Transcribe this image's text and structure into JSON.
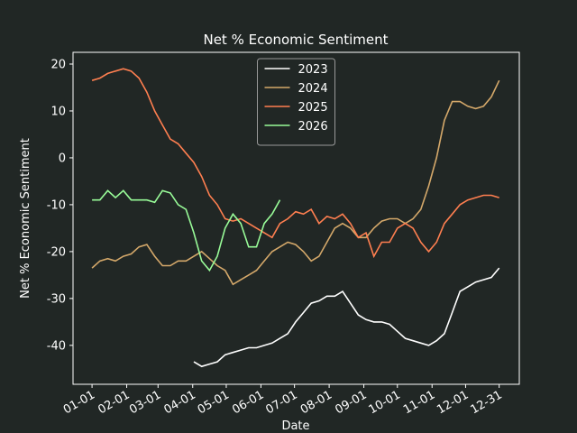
{
  "chart_data": {
    "type": "line",
    "title": "Net % Economic Sentiment",
    "xlabel": "Date",
    "ylabel": "Net % Economic Sentiment",
    "x": [
      1,
      8,
      15,
      22,
      29,
      36,
      43,
      50,
      57,
      64,
      71,
      78,
      85,
      92,
      99,
      106,
      113,
      120,
      127,
      134,
      141,
      148,
      155,
      162,
      169,
      176,
      183,
      190,
      197,
      204,
      211,
      218,
      225,
      232,
      239,
      246,
      253,
      260,
      267,
      274,
      281,
      288,
      295,
      302,
      309,
      316,
      323,
      330,
      337,
      344,
      351,
      358,
      365
    ],
    "xlim": [
      -16,
      383
    ],
    "xticks": [
      {
        "value": 1,
        "label": "01-01"
      },
      {
        "value": 32,
        "label": "02-01"
      },
      {
        "value": 60,
        "label": "03-01"
      },
      {
        "value": 91,
        "label": "04-01"
      },
      {
        "value": 121,
        "label": "05-01"
      },
      {
        "value": 152,
        "label": "06-01"
      },
      {
        "value": 182,
        "label": "07-01"
      },
      {
        "value": 213,
        "label": "08-01"
      },
      {
        "value": 244,
        "label": "09-01"
      },
      {
        "value": 274,
        "label": "10-01"
      },
      {
        "value": 305,
        "label": "11-01"
      },
      {
        "value": 335,
        "label": "12-01"
      },
      {
        "value": 365,
        "label": "12-31"
      }
    ],
    "ylim": [
      -48.3,
      22.5
    ],
    "yticks": [
      -40,
      -30,
      -20,
      -10,
      0,
      10,
      20
    ],
    "legend": "upper center",
    "series": [
      {
        "name": "2023",
        "color": "#ffffff",
        "values": [
          null,
          null,
          null,
          null,
          null,
          null,
          null,
          null,
          null,
          null,
          null,
          null,
          null,
          -43.5,
          -44.5,
          -44,
          -43.5,
          -42,
          -41.5,
          -41,
          -40.5,
          -40.5,
          -40,
          -39.5,
          -38.5,
          -37.5,
          -35,
          -33,
          -31,
          -30.5,
          -29.5,
          -29.5,
          -28.5,
          -31,
          -33.5,
          -34.5,
          -35,
          -35,
          -35.5,
          -37,
          -38.5,
          -39,
          -39.5,
          -40,
          -39,
          -37.5,
          -33,
          -28.5,
          -27.5,
          -26.5,
          -26,
          -25.5,
          -23.5
        ]
      },
      {
        "name": "2024",
        "color": "#d4a86a",
        "values": [
          -23.5,
          -22,
          -21.5,
          -22,
          -21,
          -20.5,
          -19,
          -18.5,
          -21,
          -23,
          -23,
          -22,
          -22,
          -21,
          -20,
          -21.5,
          -23,
          -24,
          -27,
          -26,
          -25,
          -24,
          -22,
          -20,
          -19,
          -18,
          -18.5,
          -20,
          -22,
          -21,
          -18,
          -15,
          -14,
          -15,
          -17,
          -17,
          -15,
          -13.5,
          -13,
          -13,
          -14,
          -13,
          -11,
          -6,
          0,
          8,
          12,
          12,
          11,
          10.5,
          11,
          13,
          16.5
        ]
      },
      {
        "name": "2025",
        "color": "#ff7f50",
        "values": [
          16.5,
          17,
          18,
          18.5,
          19,
          18.5,
          17,
          14,
          10,
          7,
          4,
          3,
          1,
          -1,
          -4,
          -8,
          -10,
          -13,
          -13.5,
          -13,
          -14,
          -15,
          -16,
          -17,
          -14,
          -13,
          -11.5,
          -12,
          -11,
          -14,
          -12.5,
          -13,
          -12,
          -14,
          -17,
          -16,
          -21,
          -18,
          -18,
          -15,
          -14,
          -15,
          -18,
          -20,
          -18,
          -14,
          -12,
          -10,
          -9,
          -8.5,
          -8,
          -8,
          -8.5
        ]
      },
      {
        "name": "2026",
        "color": "#98fb98",
        "values": [
          -9,
          -9,
          -7,
          -8.5,
          -7,
          -9,
          -9,
          -9,
          -9.5,
          -7,
          -7.5,
          -10,
          -11,
          -16,
          -22,
          -24,
          -21,
          -15,
          -12,
          -14,
          -19,
          -19,
          -14,
          -12,
          -9,
          null,
          null,
          null,
          null,
          null,
          null,
          null,
          null,
          null,
          null,
          null,
          null,
          null,
          null,
          null,
          null,
          null,
          null,
          null,
          null,
          null,
          null,
          null,
          null,
          null,
          null,
          null,
          null
        ]
      }
    ]
  }
}
